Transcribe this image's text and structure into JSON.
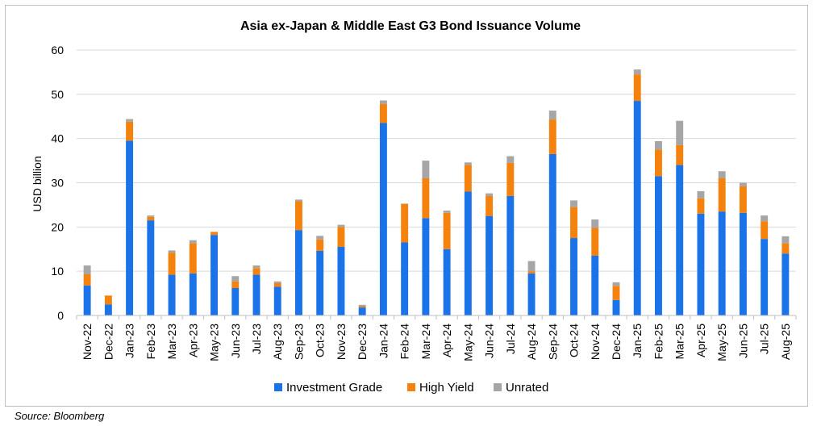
{
  "source": "Source: Bloomberg",
  "chart_data": {
    "type": "bar",
    "stacked": true,
    "title": "Asia ex-Japan & Middle East G3 Bond Issuance Volume",
    "xlabel": "",
    "ylabel": "USD billion",
    "ylim": [
      0,
      60
    ],
    "yticks": [
      0,
      10,
      20,
      30,
      40,
      50,
      60
    ],
    "grid": true,
    "legend_position": "bottom",
    "categories": [
      "Nov-22",
      "Dec-22",
      "Jan-23",
      "Feb-23",
      "Mar-23",
      "Apr-23",
      "May-23",
      "Jun-23",
      "Jul-23",
      "Aug-23",
      "Sep-23",
      "Oct-23",
      "Nov-23",
      "Dec-23",
      "Jan-24",
      "Feb-24",
      "Mar-24",
      "Apr-24",
      "May-24",
      "Jun-24",
      "Jul-24",
      "Aug-24",
      "Sep-24",
      "Oct-24",
      "Nov-24",
      "Dec-24",
      "Jan-25",
      "Feb-25",
      "Mar-25",
      "Apr-25",
      "May-25",
      "Jun-25",
      "Jul-25",
      "Aug-25"
    ],
    "series": [
      {
        "name": "Investment Grade",
        "color": "#1a73e8",
        "values": [
          6.8,
          2.5,
          39.5,
          21.5,
          9.2,
          9.5,
          18.2,
          6.2,
          9.2,
          6.5,
          19.3,
          14.6,
          15.5,
          1.8,
          43.5,
          16.5,
          22.0,
          15.0,
          28.0,
          22.5,
          27.0,
          9.5,
          36.5,
          17.5,
          13.5,
          3.5,
          48.5,
          31.5,
          34.0,
          23.0,
          23.5,
          23.2,
          17.3,
          14.0
        ]
      },
      {
        "name": "High Yield",
        "color": "#f5820d",
        "values": [
          2.5,
          2.0,
          4.3,
          0.8,
          5.0,
          6.8,
          0.7,
          1.5,
          1.5,
          0.8,
          6.5,
          2.6,
          4.5,
          0.3,
          4.3,
          8.7,
          9.0,
          8.2,
          6.0,
          4.5,
          7.5,
          0.5,
          7.8,
          7.0,
          6.3,
          3.2,
          6.0,
          6.0,
          4.5,
          3.5,
          7.5,
          6.0,
          4.0,
          2.3
        ]
      },
      {
        "name": "Unrated",
        "color": "#a6a6a6",
        "values": [
          2.0,
          0.0,
          0.6,
          0.3,
          0.5,
          0.7,
          0.0,
          1.2,
          0.6,
          0.4,
          0.4,
          0.8,
          0.5,
          0.3,
          0.8,
          0.1,
          4.0,
          0.5,
          0.6,
          0.6,
          1.5,
          2.3,
          2.0,
          1.5,
          1.9,
          0.8,
          1.1,
          1.9,
          5.5,
          1.6,
          1.6,
          0.8,
          1.3,
          1.6
        ]
      }
    ]
  }
}
